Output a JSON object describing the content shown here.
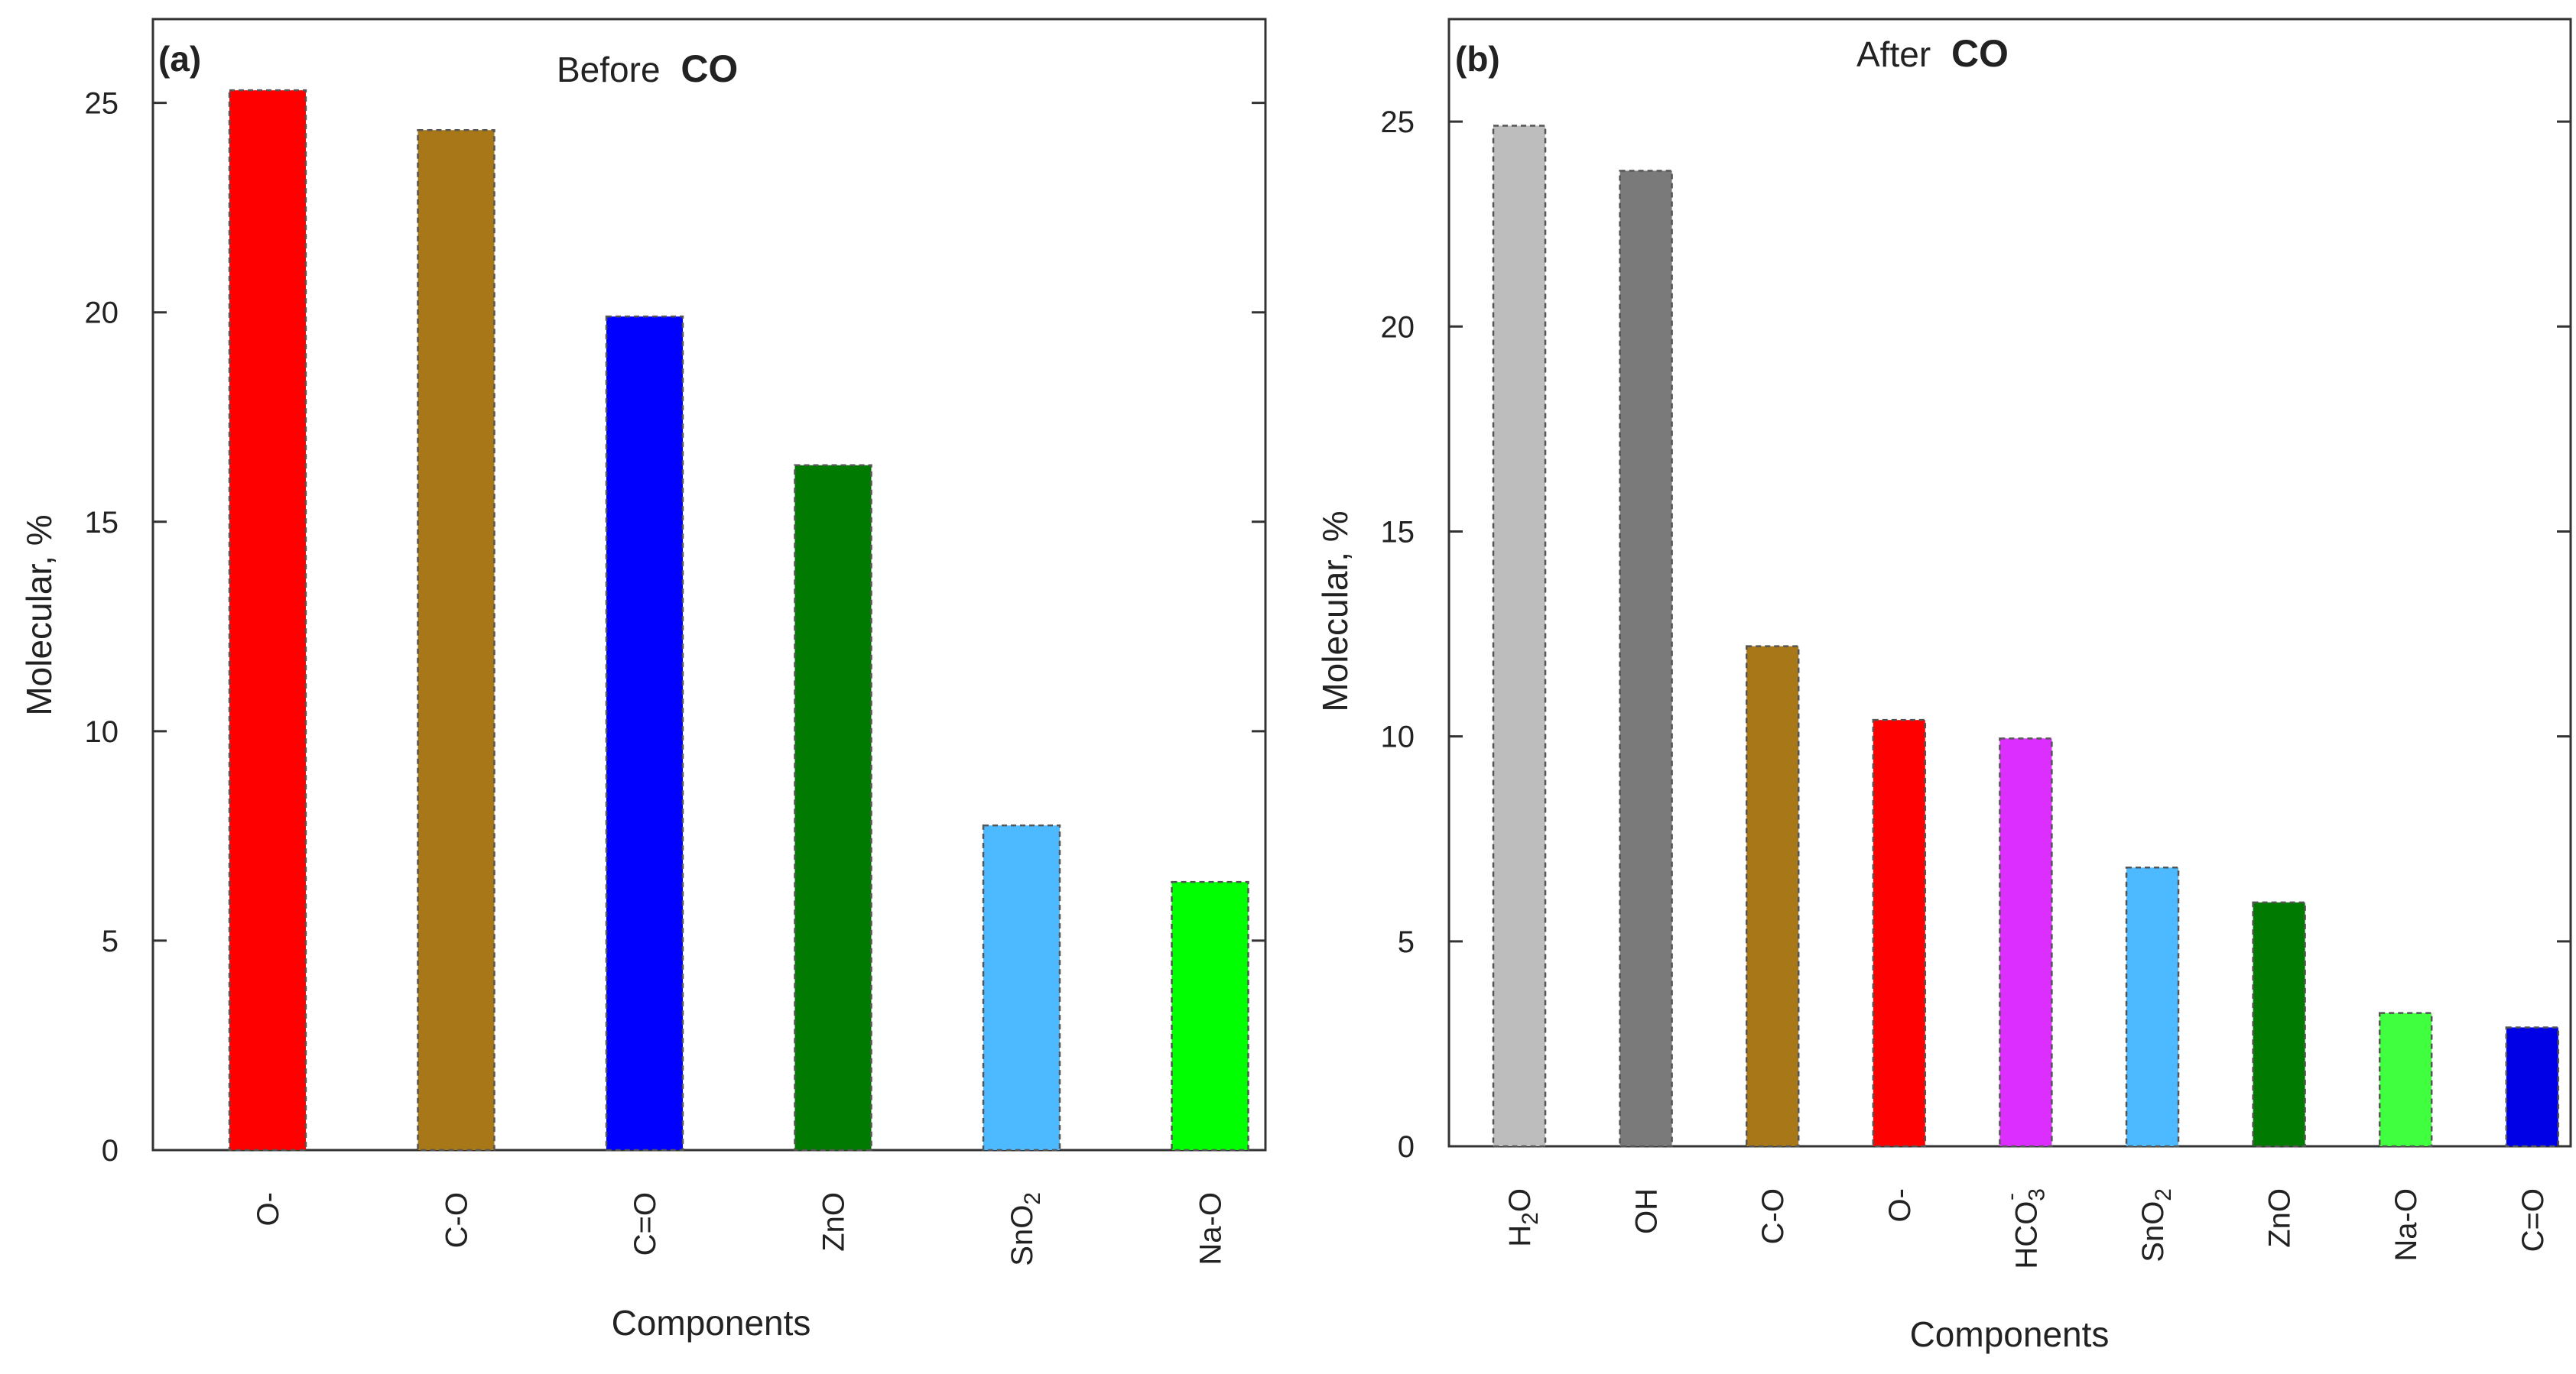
{
  "chart_data": [
    {
      "type": "bar",
      "panel_label": "(a)",
      "title": "Before",
      "title_emphasis": "CO",
      "xlabel": "Components",
      "ylabel": "Molecular, %",
      "ylim": [
        0,
        27
      ],
      "yticks": [
        0,
        5,
        10,
        15,
        20,
        25
      ],
      "categories": [
        "O-",
        "C-O",
        "C=O",
        "ZnO",
        "SnO2",
        "Na-O"
      ],
      "category_labels": [
        {
          "base": "O-"
        },
        {
          "base": "C-O"
        },
        {
          "base": "C=O"
        },
        {
          "base": "ZnO"
        },
        {
          "base": "SnO",
          "sub": "2"
        },
        {
          "base": "Na-O"
        }
      ],
      "values": [
        25.3,
        24.35,
        19.9,
        16.35,
        7.75,
        6.4
      ],
      "colors": [
        "#ff0000",
        "#a87718",
        "#0000ff",
        "#007a00",
        "#4dbaff",
        "#00ff00"
      ]
    },
    {
      "type": "bar",
      "panel_label": "(b)",
      "title": "After",
      "title_emphasis": "CO",
      "xlabel": "Components",
      "ylabel": "Molecular, %",
      "ylim": [
        0,
        27.5
      ],
      "yticks": [
        0,
        5,
        10,
        15,
        20,
        25
      ],
      "categories": [
        "H2O",
        "OH",
        "C-O",
        "O-",
        "HCO3-",
        "SnO2",
        "ZnO",
        "Na-O",
        "C=O"
      ],
      "category_labels": [
        {
          "base": "H",
          "sub": "2",
          "tail": "O"
        },
        {
          "base": "OH"
        },
        {
          "base": "C-O"
        },
        {
          "base": "O-"
        },
        {
          "base": "HCO",
          "sub": "3",
          "sup": "-"
        },
        {
          "base": "SnO",
          "sub": "2"
        },
        {
          "base": "ZnO"
        },
        {
          "base": "Na-O"
        },
        {
          "base": "C=O"
        }
      ],
      "values": [
        24.9,
        23.8,
        12.2,
        10.4,
        9.95,
        6.8,
        5.95,
        3.25,
        2.9
      ],
      "colors": [
        "#bdbdbd",
        "#7a7a7a",
        "#a87718",
        "#ff0000",
        "#dc2eff",
        "#4dbaff",
        "#007a00",
        "#3fff3f",
        "#0000e6"
      ]
    }
  ]
}
